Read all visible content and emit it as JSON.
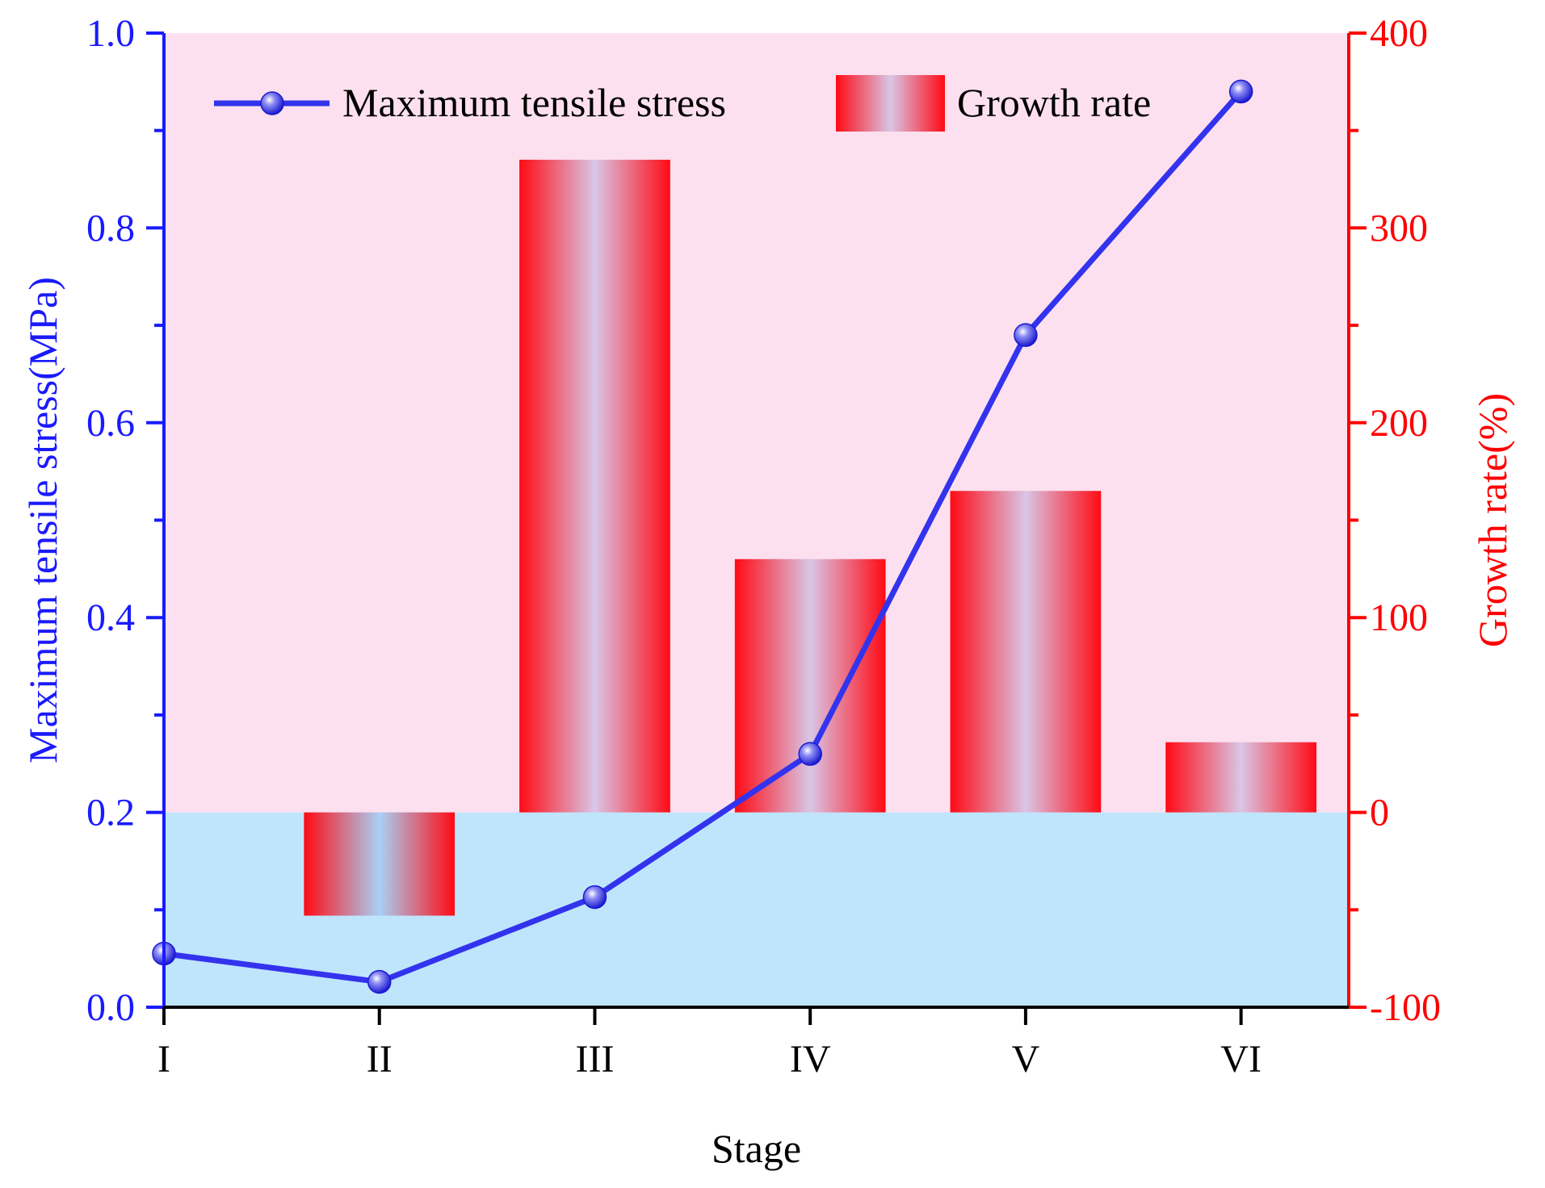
{
  "chart_data": {
    "type": "bar+line",
    "categories": [
      "I",
      "II",
      "III",
      "IV",
      "V",
      "VI"
    ],
    "xlabel": "Stage",
    "left_axis": {
      "label": "Maximum tensile stress(MPa)",
      "range": [
        0.0,
        1.0
      ],
      "ticks": [
        "0.0",
        "0.2",
        "0.4",
        "0.6",
        "0.8",
        "1.0"
      ],
      "tick_values": [
        0.0,
        0.2,
        0.4,
        0.6,
        0.8,
        1.0
      ],
      "color": "#1a1aff"
    },
    "right_axis": {
      "label": "Growth rate(%)",
      "range": [
        -100,
        400
      ],
      "ticks": [
        "-100",
        "0",
        "100",
        "200",
        "300",
        "400"
      ],
      "tick_values": [
        -100,
        0,
        100,
        200,
        300,
        400
      ],
      "color": "#ff0000"
    },
    "series": [
      {
        "name": "Maximum tensile stress",
        "kind": "line",
        "axis": "left",
        "values": [
          0.055,
          0.026,
          0.113,
          0.26,
          0.69,
          0.94
        ],
        "color": "#3333ee"
      },
      {
        "name": "Growth rate",
        "kind": "bar",
        "axis": "right",
        "values": [
          null,
          -53,
          335,
          130,
          165,
          36
        ],
        "color": "#ff1a1a"
      }
    ],
    "background": {
      "upper_color": "#fde0ef",
      "lower_color": "#bfe5fd",
      "split_value_right_axis": 0
    },
    "legend_position": "top"
  }
}
